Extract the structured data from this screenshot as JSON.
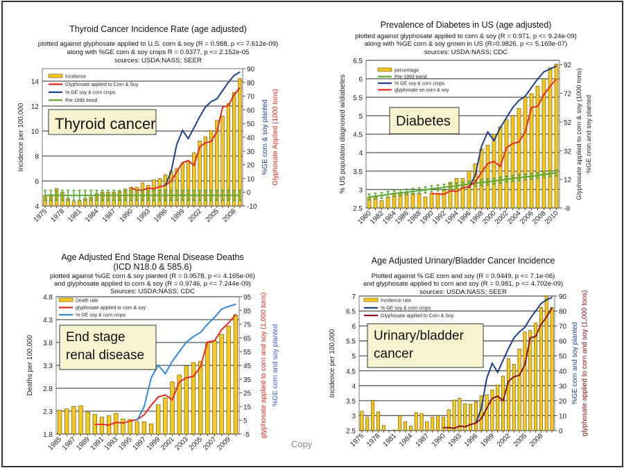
{
  "footer_text": "Copy",
  "colors": {
    "bar": "#f7c81e",
    "bar_edge": "#5a4a00",
    "red": "#e8281e",
    "navy": "#1c3f8c",
    "blue": "#2d8ae0",
    "green": "#5aa832",
    "darkred": "#8b1010",
    "label_box": "#f7f3cf"
  },
  "chart_data": [
    {
      "type": "bar+line",
      "title": [
        "Thyroid Cancer Incidence Rate (age adjusted)"
      ],
      "subtitle": [
        "plotted against glyphosate applied to U.S. corn & soy (R = 0.988, p <= 7.612e-09)",
        "along with %GE corn & soy crops R = 0.9377, p <= 2.152e-05",
        "sources: USDA:NASS; SEER"
      ],
      "label_box": [
        "Thyroid cancer"
      ],
      "ylabel": "Incidence per 100,000",
      "ylabel_right": [
        "%GE corn & soy planted",
        "Glyphosate Applied (1000 tons)"
      ],
      "ylabel_right_colors": [
        "#1c3f8c",
        "#e8281e"
      ],
      "ylim": [
        4,
        15
      ],
      "yticks": [
        "4",
        "6",
        "8",
        "10",
        "12",
        "14"
      ],
      "ylim_right": [
        -10,
        90
      ],
      "yticks_right": [
        "-10",
        "0",
        "10",
        "20",
        "30",
        "40",
        "50",
        "60",
        "70",
        "80",
        "90"
      ],
      "year_start": 1975,
      "xtick_labels": [
        "1975",
        "1978",
        "1981",
        "1984",
        "1987",
        "1990",
        "1993",
        "1996",
        "1999",
        "2002",
        "2005",
        "2008"
      ],
      "bars": {
        "name": "Incidence",
        "values": [
          4.85,
          4.9,
          5.4,
          5.1,
          4.6,
          4.35,
          4.45,
          4.6,
          4.7,
          5.0,
          5.1,
          5.1,
          5.1,
          5.15,
          5.35,
          5.5,
          5.5,
          5.85,
          5.65,
          6.1,
          6.2,
          6.5,
          6.8,
          7.0,
          7.4,
          7.6,
          8.25,
          9.2,
          9.55,
          10.05,
          10.85,
          11.2,
          12.2,
          13.1,
          14.2
        ]
      },
      "lines": [
        {
          "name": "Glyphosate applied to Corn & Soy",
          "color": "#e8281e",
          "axis": "right",
          "start": 1990,
          "values": [
            3,
            1.5,
            1.5,
            3,
            2.5,
            4,
            5,
            8,
            15,
            21.5,
            23,
            19.5,
            33,
            36,
            37,
            44,
            62,
            63,
            71,
            76
          ]
        },
        {
          "name": "% GE soy & corn crops",
          "color": "#1c3f8c",
          "axis": "right",
          "start": 1996,
          "values": [
            5,
            15,
            35,
            45,
            39,
            47,
            55,
            62,
            66,
            68,
            74,
            80,
            85,
            87.5
          ]
        },
        {
          "name": "Pre 1990 trend",
          "color": "#5aa832",
          "axis": "left",
          "start": 1975,
          "errorbar": 0.4,
          "values": [
            4.85,
            4.85,
            4.85,
            4.85,
            4.85,
            4.85,
            4.85,
            4.85,
            4.85,
            4.85,
            4.85,
            4.85,
            4.85,
            4.85,
            4.85,
            4.85,
            4.85,
            4.85,
            4.85,
            4.85,
            4.85,
            4.85,
            4.85,
            4.85,
            4.85,
            4.85,
            4.85,
            4.85,
            4.85,
            4.85,
            4.85,
            4.85,
            4.85,
            4.85,
            4.85
          ]
        }
      ],
      "legend_order": [
        "bars",
        0,
        1,
        2
      ]
    },
    {
      "type": "bar+line",
      "title": [
        "Prevalence of Diabetes in US (age adjusted)"
      ],
      "subtitle": [
        "plotted against glyphosate applied to corn & soy (R = 0.971, p <= 9.24e-09)",
        "along with %GE corn & soy grown in US (R=0.9826, p <= 5.169e-07)",
        "sources: USDA:NASS; CDC"
      ],
      "label_box": [
        "Diabetes"
      ],
      "ylabel": "% US populaton diagnosed w/diabetes",
      "ylabel_right": [
        "Glyphosate applied to corn & soy (1000 tons)",
        "%GE cron and soy planted"
      ],
      "ylabel_right_colors": [
        "#222222",
        "#222222"
      ],
      "ylim": [
        2.5,
        6.5
      ],
      "yticks": [
        "2.5",
        "3",
        "3.5",
        "4",
        "4.5",
        "5",
        "5.5",
        "6",
        "6.5"
      ],
      "ylim_right": [
        -8,
        95
      ],
      "yticks_right": [
        "-8",
        "12",
        "32",
        "52",
        "72",
        "92"
      ],
      "year_start": 1980,
      "xtick_labels": [
        "1980",
        "1982",
        "1984",
        "1986",
        "1988",
        "1990",
        "1992",
        "1994",
        "1996",
        "1998",
        "2000",
        "2002",
        "2004",
        "2006",
        "2008",
        "2010"
      ],
      "bars": {
        "name": "percentage",
        "values": [
          2.8,
          2.8,
          2.7,
          2.8,
          2.9,
          2.9,
          2.9,
          2.9,
          2.9,
          2.8,
          2.9,
          2.9,
          3.0,
          3.2,
          3.3,
          3.3,
          3.5,
          3.7,
          4.1,
          4.2,
          4.5,
          4.7,
          4.9,
          5.0,
          5.2,
          5.5,
          5.6,
          5.8,
          6.0,
          6.3,
          6.4
        ]
      },
      "lines": [
        {
          "name": "Pre-1993 trend",
          "color": "#5aa832",
          "axis": "left",
          "start": 1980,
          "errorbar": 0.08,
          "values": [
            2.8,
            2.82,
            2.84,
            2.87,
            2.89,
            2.91,
            2.93,
            2.95,
            2.97,
            2.99,
            3.02,
            3.04,
            3.06,
            3.08,
            3.1,
            3.12,
            3.15,
            3.17,
            3.19,
            3.21,
            3.23,
            3.25,
            3.28,
            3.3,
            3.32,
            3.34,
            3.36,
            3.38,
            3.41,
            3.43,
            3.45
          ]
        },
        {
          "name": "% GE soy & corn crops",
          "color": "#1c3f8c",
          "axis": "right",
          "start": 1996,
          "values": [
            6,
            15,
            35,
            45,
            39,
            48,
            55,
            62,
            67,
            70,
            76,
            82,
            87,
            89,
            91
          ]
        },
        {
          "name": "glyphosate on corn & soy",
          "color": "#e8281e",
          "axis": "right",
          "start": 1990,
          "values": [
            2,
            2,
            1.5,
            4,
            3.5,
            6,
            7,
            10,
            17,
            23,
            24.5,
            21,
            34,
            37,
            38,
            45,
            62,
            63,
            71,
            77,
            82
          ]
        }
      ],
      "legend_order": [
        "bars",
        0,
        1,
        2
      ]
    },
    {
      "type": "bar+line",
      "title": [
        "Age Adjusted End Stage Renal Disease Deaths",
        "(ICD N18.0 & 585.6)"
      ],
      "subtitle": [
        "plotted against %GE corn & soy planted (R = 0.9578, p <= 4.165e-06)",
        "and glyphosate applied to corn & soy (R = 0.9746, p <= 7.244e-09)",
        "Sources: USDA:NASS; CDC"
      ],
      "label_box": [
        "End stage",
        "renal disease"
      ],
      "ylabel": "Deaths per 100,000",
      "ylabel_right": [
        "glyphosate applied to corn and soy (1,000 tons)",
        "%GE corn and soy planted"
      ],
      "ylabel_right_colors": [
        "#e8281e",
        "#3a5bdc"
      ],
      "ylim": [
        1.8,
        4.8
      ],
      "yticks": [
        "1.8",
        "2.3",
        "2.8",
        "3.3",
        "3.8",
        "4.3",
        "4.8"
      ],
      "ylim_right": [
        -5,
        95
      ],
      "yticks_right": [
        "-5",
        "5",
        "15",
        "25",
        "35",
        "45",
        "55",
        "65",
        "75",
        "85",
        "95"
      ],
      "year_start": 1985,
      "xtick_labels": [
        "1985",
        "1987",
        "1989",
        "1991",
        "1993",
        "1995",
        "1997",
        "1999",
        "2001",
        "2003",
        "2005",
        "2007",
        "2009"
      ],
      "bars": {
        "name": "Death rate",
        "values": [
          2.32,
          2.35,
          2.4,
          2.42,
          2.28,
          2.23,
          2.17,
          2.2,
          2.25,
          2.13,
          2.12,
          2.07,
          2.07,
          2.02,
          2.44,
          2.59,
          2.94,
          3.09,
          3.29,
          3.36,
          3.39,
          3.8,
          3.84,
          3.98,
          4.16,
          4.4
        ]
      },
      "lines": [
        {
          "name": "glyphosate applied to corn & soy",
          "color": "#e8281e",
          "axis": "right",
          "start": 1990,
          "values": [
            2,
            2,
            1.5,
            3.5,
            3,
            4.5,
            5.5,
            9,
            16,
            22,
            23.5,
            20,
            33,
            36,
            37,
            44,
            62,
            63,
            71,
            76,
            82
          ]
        },
        {
          "name": "% GE soy & corn crops",
          "color": "#2d8ae0",
          "axis": "right",
          "start": 1996,
          "values": [
            5,
            15,
            36,
            45,
            39,
            48,
            55,
            62,
            66,
            69,
            75,
            80,
            86,
            88,
            89.5
          ]
        }
      ],
      "legend_order": [
        "bars",
        0,
        1
      ]
    },
    {
      "type": "bar+line",
      "title": [
        "Age Adjusted Urinary/Bladder Cancer Incidence"
      ],
      "subtitle": [
        "Plotted against % GE corn and soy (R = 0.9449, p <= 7.1e-06)",
        "and glyphosate applied to corn and soy (R = 0.981, p <= 4.702e-09)",
        "sources: USDA:NASS; SEER"
      ],
      "label_box": [
        "Urinary/bladder",
        "cancer"
      ],
      "ylabel": "Incidence per 100,000",
      "ylabel_right": [
        "%GE corn and soy planted",
        "glyphosate applied to corn and soy (1,000 tons)"
      ],
      "ylabel_right_colors": [
        "#1c3f8c",
        "#8b1010"
      ],
      "ylim": [
        2.5,
        7
      ],
      "yticks": [
        "2.5",
        "3",
        "3.5",
        "4",
        "4.5",
        "5",
        "5.5",
        "6",
        "6.5",
        "7"
      ],
      "ylim_right": [
        0,
        90
      ],
      "yticks_right": [
        "0",
        "10",
        "20",
        "30",
        "40",
        "50",
        "60",
        "70",
        "80",
        "90"
      ],
      "year_start": 1975,
      "xtick_labels": [
        "1975",
        "1978",
        "1981",
        "1984",
        "1987",
        "1990",
        "1993",
        "1996",
        "1999",
        "2002",
        "2005",
        "2008"
      ],
      "bars": {
        "name": "Incidence rate",
        "values": [
          3.15,
          2.95,
          3.5,
          3.13,
          2.67,
          2.5,
          2.52,
          3.0,
          2.8,
          2.65,
          3.1,
          3.07,
          2.8,
          2.95,
          3.0,
          2.95,
          3.2,
          3.52,
          3.58,
          3.4,
          3.38,
          3.47,
          3.67,
          3.7,
          3.86,
          4.03,
          4.32,
          4.91,
          4.72,
          5.23,
          5.8,
          5.85,
          6.1,
          6.62,
          7.0,
          6.62
        ]
      },
      "lines": [
        {
          "name": "% GE soy & corn crops",
          "color": "#1c3f8c",
          "axis": "right",
          "start": 1996,
          "values": [
            5,
            15,
            35,
            45,
            39,
            47,
            55,
            62,
            66,
            69,
            75,
            80,
            85,
            87.5,
            89
          ]
        },
        {
          "name": "Glyphosate applied to Corn & Soy",
          "color": "#8b1010",
          "axis": "right",
          "start": 1990,
          "values": [
            2,
            2,
            1.5,
            3,
            2.5,
            4,
            5,
            8,
            15,
            21.5,
            23,
            20,
            33,
            36,
            37,
            44,
            62,
            63,
            71,
            76,
            82
          ]
        }
      ],
      "legend_order": [
        "bars",
        0,
        1
      ]
    }
  ]
}
